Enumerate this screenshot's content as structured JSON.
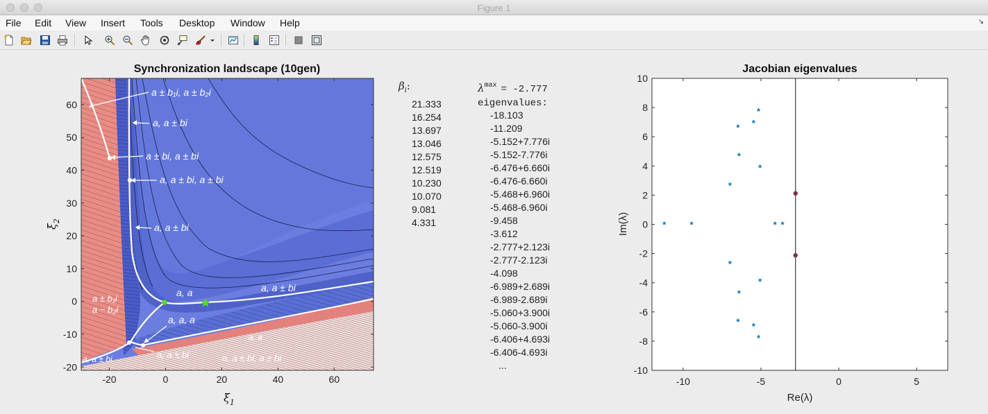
{
  "window": {
    "title": "Figure 1"
  },
  "menu": [
    "File",
    "Edit",
    "View",
    "Insert",
    "Tools",
    "Desktop",
    "Window",
    "Help"
  ],
  "toolbar_icons": [
    "new-figure-icon",
    "open-file-icon",
    "save-icon",
    "print-icon",
    "pointer-icon",
    "zoom-in-icon",
    "zoom-out-icon",
    "pan-icon",
    "rotate-3d-icon",
    "data-cursor-icon",
    "brush-icon",
    "brush-dropdown-icon",
    "link-plot-icon",
    "colorbar-icon",
    "legend-icon",
    "hide-plot-tools-icon",
    "show-plot-tools-icon"
  ],
  "left_plot": {
    "title": "Synchronization landscape (10gen)",
    "xlabel": "ξ",
    "xlabel_sub": "1",
    "ylabel": "ξ",
    "ylabel_sub": "2",
    "xticks": [
      "-20",
      "0",
      "20",
      "40",
      "60"
    ],
    "yticks": [
      "60",
      "50",
      "40",
      "30",
      "20",
      "10",
      "0",
      "-10",
      "-20"
    ],
    "annotations": [
      "a ± b₁i, a ± b₂i",
      "a, a ± bi",
      "a ± bi, a ± bi",
      "a, a ± bi, a ± bi",
      "a, a ± bi",
      "a, a",
      "a, a ± bi",
      "a ± b₁i",
      "a − b₂i",
      "a, a, a",
      "a, a",
      "a, a ± bi",
      "a, a ± bi, a ± bi",
      "a, a ± bi"
    ]
  },
  "beta_panel": {
    "label": "β",
    "label_sub": "i",
    "label_suffix": ":",
    "values": [
      "21.333",
      "16.254",
      "13.697",
      "13.046",
      "12.575",
      "12.519",
      "10.230",
      "10.070",
      "9.081",
      "4.331"
    ]
  },
  "eig_panel": {
    "lambda_label": "λ",
    "lambda_sup": "max",
    "lambda_value": "= -2.777",
    "eig_label": "eigenvalues:",
    "values": [
      "-18.103",
      "-11.209",
      "-5.152+7.776i",
      "-5.152-7.776i",
      "-6.476+6.660i",
      "-6.476-6.660i",
      "-5.468+6.960i",
      "-5.468-6.960i",
      "-9.458",
      "-3.612",
      "-2.777+2.123i",
      "-2.777-2.123i",
      "-4.098",
      "-6.989+2.689i",
      "-6.989-2.689i",
      "-5.060+3.900i",
      "-5.060-3.900i",
      "-6.406+4.693i",
      "-6.406-4.693i",
      "..."
    ]
  },
  "chart_data": [
    {
      "type": "heatmap",
      "title": "Synchronization landscape (10gen)",
      "xlabel": "ξ1",
      "ylabel": "ξ2",
      "xlim": [
        -30,
        74
      ],
      "ylim": [
        -21,
        68
      ],
      "markers": [
        {
          "kind": "dot",
          "color": "#55dd22",
          "x": 0,
          "y": 0
        },
        {
          "kind": "star",
          "color": "#55dd22",
          "x": 14,
          "y": 0
        }
      ]
    },
    {
      "type": "scatter",
      "title": "Jacobian eigenvalues",
      "xlabel": "Re(λ)",
      "ylabel": "Im(λ)",
      "xlim": [
        -12,
        7
      ],
      "ylim": [
        -10,
        10
      ],
      "xticks": [
        -10,
        -5,
        0,
        5
      ],
      "yticks": [
        10,
        8,
        6,
        4,
        2,
        0,
        -2,
        -4,
        -6,
        -8,
        -10
      ],
      "vline_x": -2.777,
      "series": [
        {
          "marker": "star",
          "color": "#0072bd",
          "points": [
            [
              -11.209,
              0
            ],
            [
              -9.458,
              0
            ],
            [
              -5.152,
              7.776
            ],
            [
              -5.152,
              -7.776
            ],
            [
              -6.476,
              6.66
            ],
            [
              -6.476,
              -6.66
            ],
            [
              -5.468,
              6.96
            ],
            [
              -5.468,
              -6.96
            ],
            [
              -3.612,
              0
            ],
            [
              -4.098,
              0
            ],
            [
              -6.989,
              2.689
            ],
            [
              -6.989,
              -2.689
            ],
            [
              -5.06,
              3.9
            ],
            [
              -5.06,
              -3.9
            ],
            [
              -6.406,
              4.693
            ],
            [
              -6.406,
              -4.693
            ]
          ]
        },
        {
          "marker": "dot",
          "color": "#7e2f4e",
          "points": [
            [
              -2.777,
              2.123
            ],
            [
              -2.777,
              -2.123
            ]
          ]
        }
      ]
    }
  ]
}
